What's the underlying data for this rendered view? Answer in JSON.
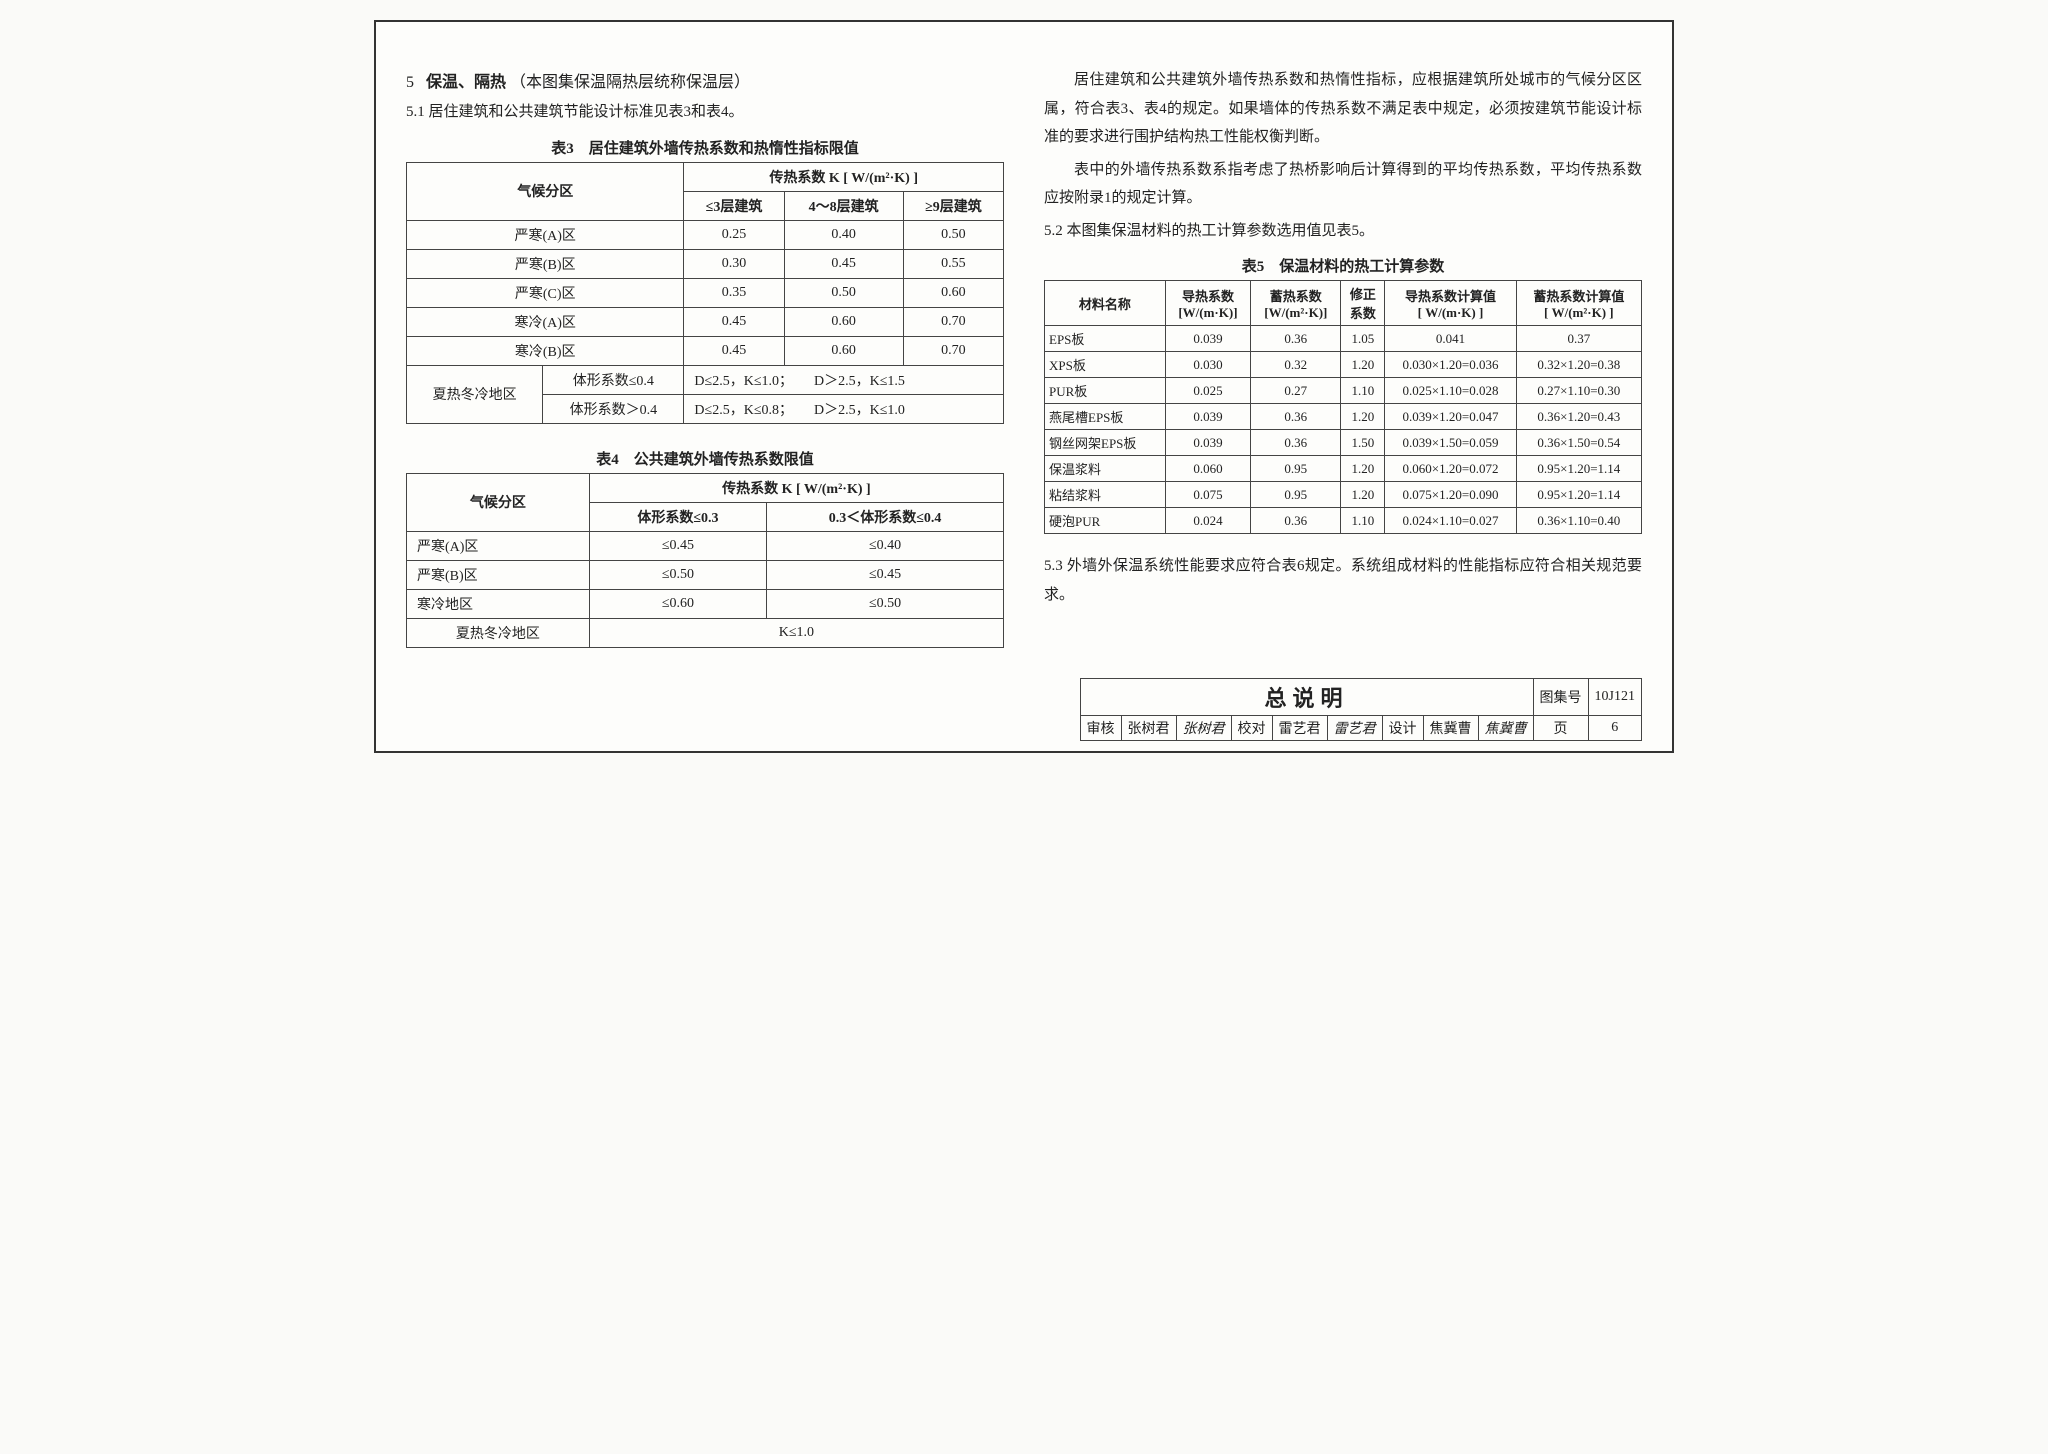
{
  "left": {
    "heading5_num": "5",
    "heading5_title": "保温、隔热",
    "heading5_note": "（本图集保温隔热层统称保温层）",
    "sec51": "5.1 居住建筑和公共建筑节能设计标准见表3和表4。",
    "table3": {
      "caption": "表3　居住建筑外墙传热系数和热惰性指标限值",
      "head_zone": "气候分区",
      "head_k": "传热系数 K [ W/(m²·K) ]",
      "sub_le3": "≤3层建筑",
      "sub_4_8": "4～8层建筑",
      "sub_ge9": "≥9层建筑",
      "rows": [
        {
          "zone": "严寒(A)区",
          "a": "0.25",
          "b": "0.40",
          "c": "0.50"
        },
        {
          "zone": "严寒(B)区",
          "a": "0.30",
          "b": "0.45",
          "c": "0.55"
        },
        {
          "zone": "严寒(C)区",
          "a": "0.35",
          "b": "0.50",
          "c": "0.60"
        },
        {
          "zone": "寒冷(A)区",
          "a": "0.45",
          "b": "0.60",
          "c": "0.70"
        },
        {
          "zone": "寒冷(B)区",
          "a": "0.45",
          "b": "0.60",
          "c": "0.70"
        }
      ],
      "hotzone_label": "夏热冬冷地区",
      "shape_le": "体形系数≤0.4",
      "shape_gt": "体形系数＞0.4",
      "hot_row1": "D≤2.5，K≤1.0；　　D＞2.5，K≤1.5",
      "hot_row2": "D≤2.5，K≤0.8；　　D＞2.5，K≤1.0"
    },
    "table4": {
      "caption": "表4　公共建筑外墙传热系数限值",
      "head_zone": "气候分区",
      "head_k": "传热系数 K [ W/(m²·K) ]",
      "sub_a": "体形系数≤0.3",
      "sub_b": "0.3＜体形系数≤0.4",
      "rows": [
        {
          "zone": "严寒(A)区",
          "a": "≤0.45",
          "b": "≤0.40"
        },
        {
          "zone": "严寒(B)区",
          "a": "≤0.50",
          "b": "≤0.45"
        },
        {
          "zone": "寒冷地区",
          "a": "≤0.60",
          "b": "≤0.50"
        }
      ],
      "last_zone": "夏热冬冷地区",
      "last_val": "K≤1.0"
    }
  },
  "right": {
    "p1": "居住建筑和公共建筑外墙传热系数和热惰性指标，应根据建筑所处城市的气候分区区属，符合表3、表4的规定。如果墙体的传热系数不满足表中规定，必须按建筑节能设计标准的要求进行围护结构热工性能权衡判断。",
    "p2": "表中的外墙传热系数系指考虑了热桥影响后计算得到的平均传热系数，平均传热系数应按附录1的规定计算。",
    "sec52": "5.2 本图集保温材料的热工计算参数选用值见表5。",
    "table5": {
      "caption": "表5　保温材料的热工计算参数",
      "h_name": "材料名称",
      "h_lambda": "导热系数\n[W/(m·K)]",
      "h_s": "蓄热系数\n[W/(m²·K)]",
      "h_corr": "修正\n系数",
      "h_lambda_calc": "导热系数计算值\n[ W/(m·K) ]",
      "h_s_calc": "蓄热系数计算值\n[ W/(m²·K) ]",
      "rows": [
        {
          "n": "EPS板",
          "l": "0.039",
          "s": "0.36",
          "c": "1.05",
          "lc": "0.041",
          "sc": "0.37"
        },
        {
          "n": "XPS板",
          "l": "0.030",
          "s": "0.32",
          "c": "1.20",
          "lc": "0.030×1.20=0.036",
          "sc": "0.32×1.20=0.38"
        },
        {
          "n": "PUR板",
          "l": "0.025",
          "s": "0.27",
          "c": "1.10",
          "lc": "0.025×1.10=0.028",
          "sc": "0.27×1.10=0.30"
        },
        {
          "n": "燕尾槽EPS板",
          "l": "0.039",
          "s": "0.36",
          "c": "1.20",
          "lc": "0.039×1.20=0.047",
          "sc": "0.36×1.20=0.43"
        },
        {
          "n": "钢丝网架EPS板",
          "l": "0.039",
          "s": "0.36",
          "c": "1.50",
          "lc": "0.039×1.50=0.059",
          "sc": "0.36×1.50=0.54"
        },
        {
          "n": "保温浆料",
          "l": "0.060",
          "s": "0.95",
          "c": "1.20",
          "lc": "0.060×1.20=0.072",
          "sc": "0.95×1.20=1.14"
        },
        {
          "n": "粘结浆料",
          "l": "0.075",
          "s": "0.95",
          "c": "1.20",
          "lc": "0.075×1.20=0.090",
          "sc": "0.95×1.20=1.14"
        },
        {
          "n": "硬泡PUR",
          "l": "0.024",
          "s": "0.36",
          "c": "1.10",
          "lc": "0.024×1.10=0.027",
          "sc": "0.36×1.10=0.40"
        }
      ]
    },
    "sec53": "5.3 外墙外保温系统性能要求应符合表6规定。系统组成材料的性能指标应符合相关规范要求。"
  },
  "footer": {
    "title": "总说明",
    "atlas_label": "图集号",
    "atlas_value": "10J121",
    "review_label": "审核",
    "review_name": "张树君",
    "review_sig": "张树君",
    "check_label": "校对",
    "check_name": "雷艺君",
    "check_sig": "雷艺君",
    "design_label": "设计",
    "design_name": "焦冀曹",
    "design_sig": "焦冀曹",
    "page_label": "页",
    "page_value": "6"
  },
  "colors": {
    "border": "#333333",
    "text": "#222222",
    "bg": "#fdfdfb"
  }
}
